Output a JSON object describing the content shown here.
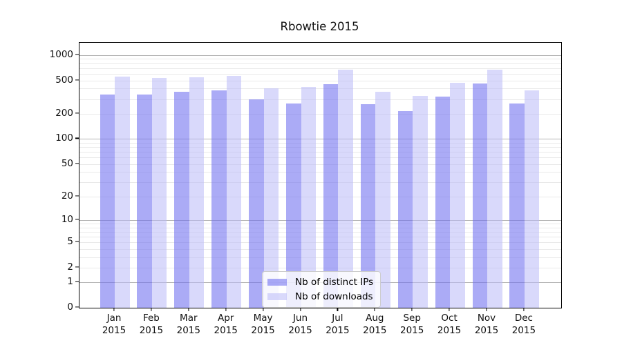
{
  "chart_data": {
    "type": "bar",
    "title": "Rbowtie 2015",
    "categories": [
      "Jan",
      "Feb",
      "Mar",
      "Apr",
      "May",
      "Jun",
      "Jul",
      "Aug",
      "Sep",
      "Oct",
      "Nov",
      "Dec"
    ],
    "category_year": "2015",
    "series": [
      {
        "name": "Nb of distinct IPs",
        "color": "rgba(110,110,240,0.58)",
        "color_hex_appearance": "#a9a9f3",
        "values": [
          337,
          337,
          364,
          377,
          297,
          267,
          454,
          262,
          216,
          320,
          462,
          268
        ]
      },
      {
        "name": "Nb of downloads",
        "color": "rgba(185,185,247,0.55)",
        "color_hex_appearance": "#d8d8fa",
        "values": [
          558,
          531,
          546,
          569,
          399,
          420,
          675,
          366,
          325,
          471,
          666,
          383
        ]
      }
    ],
    "xlabel": "",
    "ylabel": "",
    "y_scale": "log1p",
    "y_max": 1400,
    "y_ticks": [
      0,
      1,
      2,
      5,
      10,
      20,
      50,
      100,
      200,
      500,
      1000
    ],
    "y_major_grid": [
      1,
      10,
      100,
      1000
    ],
    "y_minor_grid": [
      2,
      3,
      4,
      5,
      6,
      7,
      8,
      9,
      20,
      30,
      40,
      50,
      60,
      70,
      80,
      90,
      200,
      300,
      400,
      500,
      600,
      700,
      800,
      900
    ],
    "grid": true,
    "legend": {
      "position": "inside-bottom-center",
      "entries": [
        "Nb of distinct IPs",
        "Nb of downloads"
      ]
    },
    "colors": {
      "grid_major": "#b3b3b3",
      "grid_minor": "#e9e9e9",
      "spine": "#000000",
      "text": "#111111",
      "background": "#ffffff"
    }
  }
}
